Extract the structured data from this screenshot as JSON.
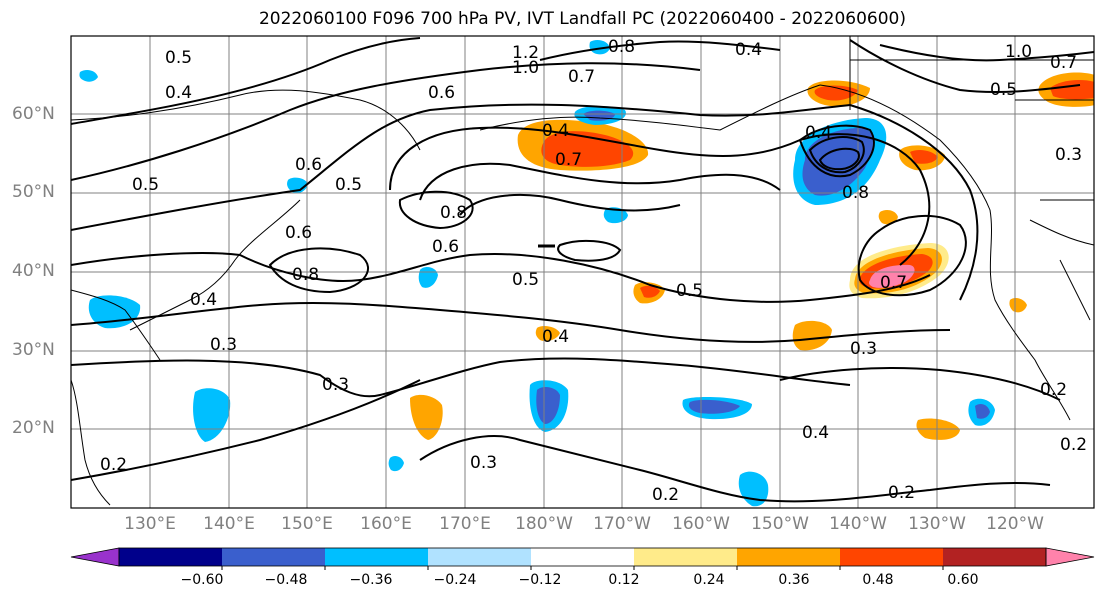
{
  "title": "2022060100 F096 700 hPa PV, IVT Landfall PC (2022060400 - 2022060600)",
  "lat_labels": [
    "60°N",
    "50°N",
    "40°N",
    "30°N",
    "20°N"
  ],
  "lon_labels": [
    "130°E",
    "140°E",
    "150°E",
    "160°E",
    "170°E",
    "180°W",
    "170°W",
    "160°W",
    "150°W",
    "140°W",
    "130°W",
    "120°W"
  ],
  "contour_labels": [
    "1.2",
    "1.0",
    "0.8",
    "0.7",
    "0.6",
    "0.5",
    "0.4",
    "0.5",
    "0.6",
    "0.8",
    "0.4",
    "0.7",
    "0.6",
    "0.5",
    "0.4",
    "0.8",
    "0.4",
    "0.8",
    "0.7",
    "0.5",
    "0.3",
    "0.3",
    "0.3",
    "0.2",
    "0.4",
    "0.2",
    "0.3",
    "0.4",
    "0.2",
    "1.0",
    "0.5",
    "0.7",
    "0.3",
    "0.2",
    "0.2",
    "0.4",
    "0.6",
    "0.5"
  ],
  "colorbar": {
    "colors": [
      "#9932cc",
      "#00008b",
      "#3a5fcd",
      "#00bfff",
      "#b0e2ff",
      "#ffffff",
      "#ffeb8a",
      "#ffa500",
      "#ff4500",
      "#b22222",
      "#ff82ab"
    ],
    "tick_labels": [
      "−0.60",
      "−0.48",
      "−0.36",
      "−0.24",
      "−0.12",
      "0.12",
      "0.24",
      "0.36",
      "0.48",
      "0.60"
    ]
  },
  "colors": {
    "grid": "#808080",
    "contour": "#000000",
    "axis_label": "#808080"
  }
}
